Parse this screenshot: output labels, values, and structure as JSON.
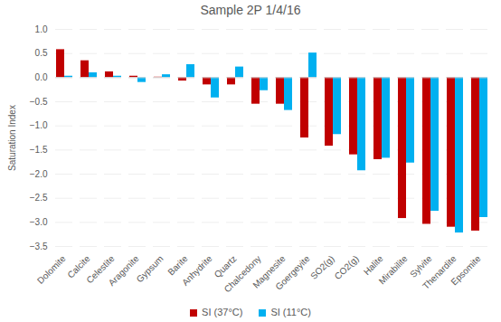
{
  "chart_data": {
    "type": "bar",
    "title": "Sample 2P 1/4/16",
    "y_label": "Saturation Index",
    "categories": [
      "Dolomite",
      "Calcite",
      "Celestite",
      "Aragonite",
      "Gypsum",
      "Barite",
      "Anhydrite",
      "Quartz",
      "Chalcedony",
      "Magnesite",
      "Goergeyite",
      "SO2(g)",
      "CO2(g)",
      "Halite",
      "Mirabilite",
      "Sylvite",
      "Thenardite",
      "Epsomite"
    ],
    "series": [
      {
        "name": "SI (37°C)",
        "color": "#c00000",
        "values": [
          0.58,
          0.35,
          0.12,
          0.03,
          0.01,
          -0.07,
          -0.15,
          -0.15,
          -0.55,
          -0.55,
          -1.25,
          -1.42,
          -1.6,
          -1.7,
          -2.92,
          -3.04,
          -3.1,
          -3.18
        ]
      },
      {
        "name": "SI (11°C)",
        "color": "#00b0f0",
        "values": [
          0.03,
          0.1,
          0.03,
          -0.1,
          0.06,
          0.27,
          -0.42,
          0.22,
          -0.27,
          -0.68,
          0.51,
          -1.18,
          -1.93,
          -1.67,
          -1.77,
          -2.77,
          -3.22,
          -2.9
        ]
      }
    ],
    "ylim": [
      -3.5,
      1
    ],
    "yticks": [
      -3.5,
      -3,
      -2.5,
      -2,
      -1.5,
      -1,
      -0.5,
      0,
      0.5,
      1
    ],
    "grid": true,
    "legend": "bottom"
  }
}
